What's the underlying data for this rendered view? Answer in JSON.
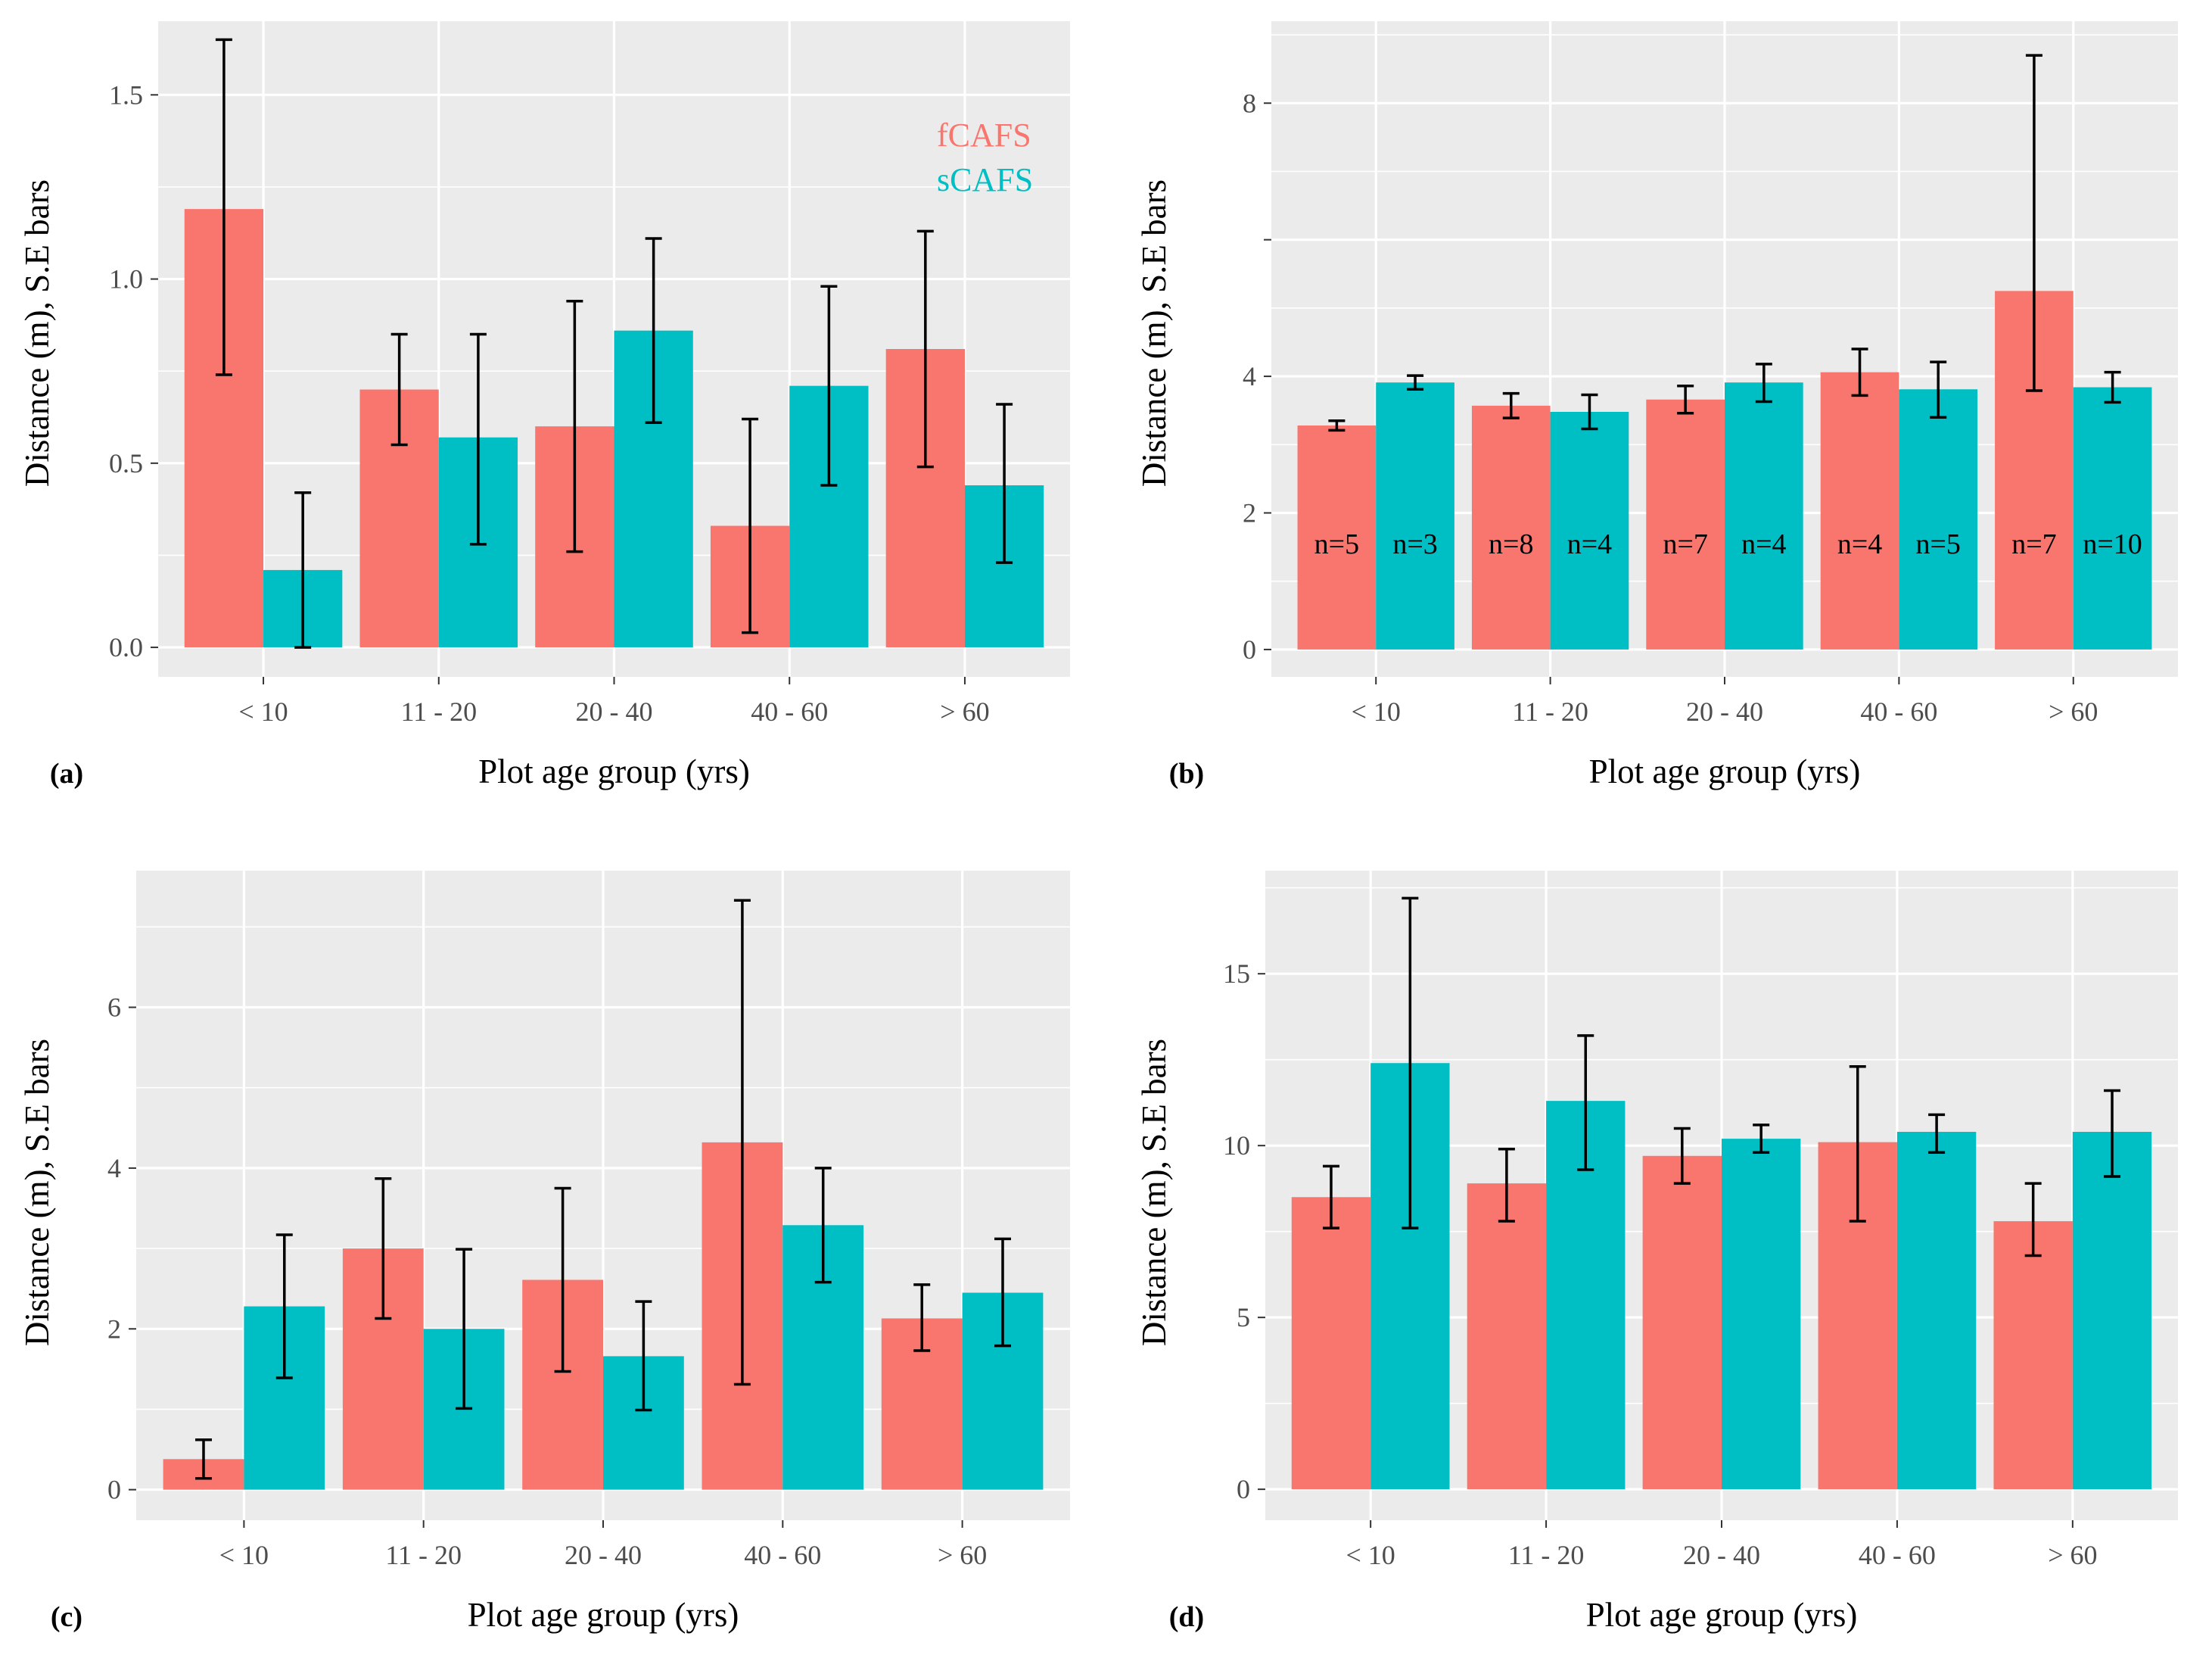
{
  "colors": {
    "fcafs": "#F8766D",
    "scafs": "#00BFC4",
    "panel": "#EBEBEB",
    "grid": "#FFFFFF"
  },
  "legend": {
    "fcafs_label": "fCAFS",
    "scafs_label": "sCAFS"
  },
  "chart_data": [
    {
      "type": "bar",
      "panel_label": "(a)",
      "categories": [
        "< 10",
        "11  - 20",
        "20 - 40",
        "40 - 60",
        "> 60"
      ],
      "xlabel": "Plot age group (yrs)",
      "ylabel": "Distance (m), S.E bars",
      "ylim": [
        -0.08,
        1.7
      ],
      "yticks": [
        0.0,
        0.5,
        1.0,
        1.5
      ],
      "ytick_labels": [
        "0.0",
        "0.5",
        "1.0",
        "1.5"
      ],
      "series": [
        {
          "name": "fCAFS",
          "values": [
            1.19,
            0.7,
            0.6,
            0.33,
            0.81
          ],
          "err_low": [
            0.74,
            0.55,
            0.26,
            0.04,
            0.49
          ],
          "err_high": [
            1.65,
            0.85,
            0.94,
            0.62,
            1.13
          ]
        },
        {
          "name": "sCAFS",
          "values": [
            0.21,
            0.57,
            0.86,
            0.71,
            0.44
          ],
          "err_low": [
            0.0,
            0.28,
            0.61,
            0.44,
            0.23
          ],
          "err_high": [
            0.42,
            0.85,
            1.11,
            0.98,
            0.66
          ]
        }
      ],
      "show_legend": true
    },
    {
      "type": "bar",
      "panel_label": "(b)",
      "categories": [
        "< 10",
        "11  - 20",
        "20 - 40",
        "40 - 60",
        "> 60"
      ],
      "xlabel": "Plot age group (yrs)",
      "ylabel": "Distance (m), S.E bars",
      "ylim": [
        -0.4,
        9.2
      ],
      "yticks": [
        0,
        2,
        4,
        6,
        8
      ],
      "ytick_labels": [
        "0",
        "2",
        "4",
        "",
        "8"
      ],
      "series": [
        {
          "name": "fCAFS",
          "values": [
            3.28,
            3.57,
            3.66,
            4.06,
            5.25
          ],
          "err_low": [
            3.21,
            3.39,
            3.46,
            3.72,
            3.79
          ],
          "err_high": [
            3.35,
            3.75,
            3.86,
            4.4,
            8.7
          ]
        },
        {
          "name": "sCAFS",
          "values": [
            3.91,
            3.48,
            3.91,
            3.81,
            3.84
          ],
          "err_low": [
            3.81,
            3.23,
            3.63,
            3.4,
            3.62
          ],
          "err_high": [
            4.01,
            3.73,
            4.18,
            4.21,
            4.06
          ]
        }
      ],
      "n_labels": [
        [
          "n=5",
          "n=3"
        ],
        [
          "n=8",
          "n=4"
        ],
        [
          "n=7",
          "n=4"
        ],
        [
          "n=4",
          "n=5"
        ],
        [
          "n=7",
          "n=10"
        ]
      ],
      "n_label_y": 1.55
    },
    {
      "type": "bar",
      "panel_label": "(c)",
      "categories": [
        "< 10",
        "11  - 20",
        "20 - 40",
        "40 - 60",
        "> 60"
      ],
      "xlabel": "Plot age group (yrs)",
      "ylabel": "Distance (m), S.E bars",
      "ylim": [
        -0.38,
        7.7
      ],
      "yticks": [
        0,
        2,
        4,
        6
      ],
      "ytick_labels": [
        "0",
        "2",
        "4",
        "6"
      ],
      "series": [
        {
          "name": "fCAFS",
          "values": [
            0.38,
            3.0,
            2.61,
            4.32,
            2.13
          ],
          "err_low": [
            0.14,
            2.13,
            1.47,
            1.31,
            1.73
          ],
          "err_high": [
            0.62,
            3.87,
            3.75,
            7.33,
            2.55
          ]
        },
        {
          "name": "sCAFS",
          "values": [
            2.28,
            2.0,
            1.66,
            3.29,
            2.45
          ],
          "err_low": [
            1.39,
            1.01,
            0.99,
            2.58,
            1.79
          ],
          "err_high": [
            3.17,
            2.99,
            2.34,
            4.0,
            3.12
          ]
        }
      ]
    },
    {
      "type": "bar",
      "panel_label": "(d)",
      "categories": [
        "< 10",
        "11  - 20",
        "20 - 40",
        "40 - 60",
        "> 60"
      ],
      "xlabel": "Plot age group (yrs)",
      "ylabel": "Distance (m), S.E bars",
      "ylim": [
        -0.9,
        18.0
      ],
      "yticks": [
        0,
        5,
        10,
        15
      ],
      "ytick_labels": [
        "0",
        "5",
        "10",
        "15"
      ],
      "series": [
        {
          "name": "fCAFS",
          "values": [
            8.5,
            8.9,
            9.7,
            10.1,
            7.8
          ],
          "err_low": [
            7.6,
            7.8,
            8.9,
            7.8,
            6.8
          ],
          "err_high": [
            9.4,
            9.9,
            10.5,
            12.3,
            8.9
          ]
        },
        {
          "name": "sCAFS",
          "values": [
            12.4,
            11.3,
            10.2,
            10.4,
            10.4
          ],
          "err_low": [
            7.6,
            9.3,
            9.8,
            9.8,
            9.1
          ],
          "err_high": [
            17.2,
            13.2,
            10.6,
            10.9,
            11.6
          ]
        }
      ]
    }
  ]
}
